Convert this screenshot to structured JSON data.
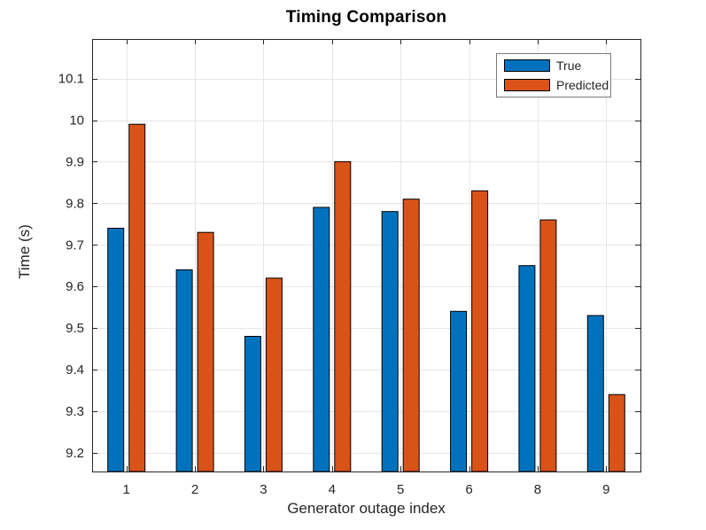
{
  "figure": {
    "title": "Timing Comparison"
  },
  "chart_data": {
    "type": "bar",
    "title": "Timing Comparison",
    "xlabel": "Generator outage index",
    "ylabel": "Time (s)",
    "categories": [
      "1",
      "2",
      "3",
      "4",
      "5",
      "6",
      "8",
      "9"
    ],
    "series": [
      {
        "name": "True",
        "color": "#0072BD",
        "values": [
          9.74,
          9.64,
          9.48,
          9.79,
          9.78,
          9.54,
          9.65,
          9.53
        ]
      },
      {
        "name": "Predicted",
        "color": "#D95319",
        "values": [
          9.99,
          9.73,
          9.62,
          9.9,
          9.81,
          9.83,
          9.76,
          9.34
        ]
      }
    ],
    "ylim": [
      9.155,
      10.195
    ],
    "yticks": [
      9.2,
      9.3,
      9.4,
      9.5,
      9.6,
      9.7,
      9.8,
      9.9,
      10,
      10.1
    ],
    "ytick_labels": [
      "9.2",
      "9.3",
      "9.4",
      "9.5",
      "9.6",
      "9.7",
      "9.8",
      "9.9",
      "10",
      "10.1"
    ],
    "grid": true,
    "legend": {
      "position": "northeast",
      "entries": [
        "True",
        "Predicted"
      ]
    },
    "colors": {
      "bar_edge": "#000000",
      "grid": "#e6e6e6",
      "axis": "#262626",
      "tick_label": "#262626"
    }
  }
}
